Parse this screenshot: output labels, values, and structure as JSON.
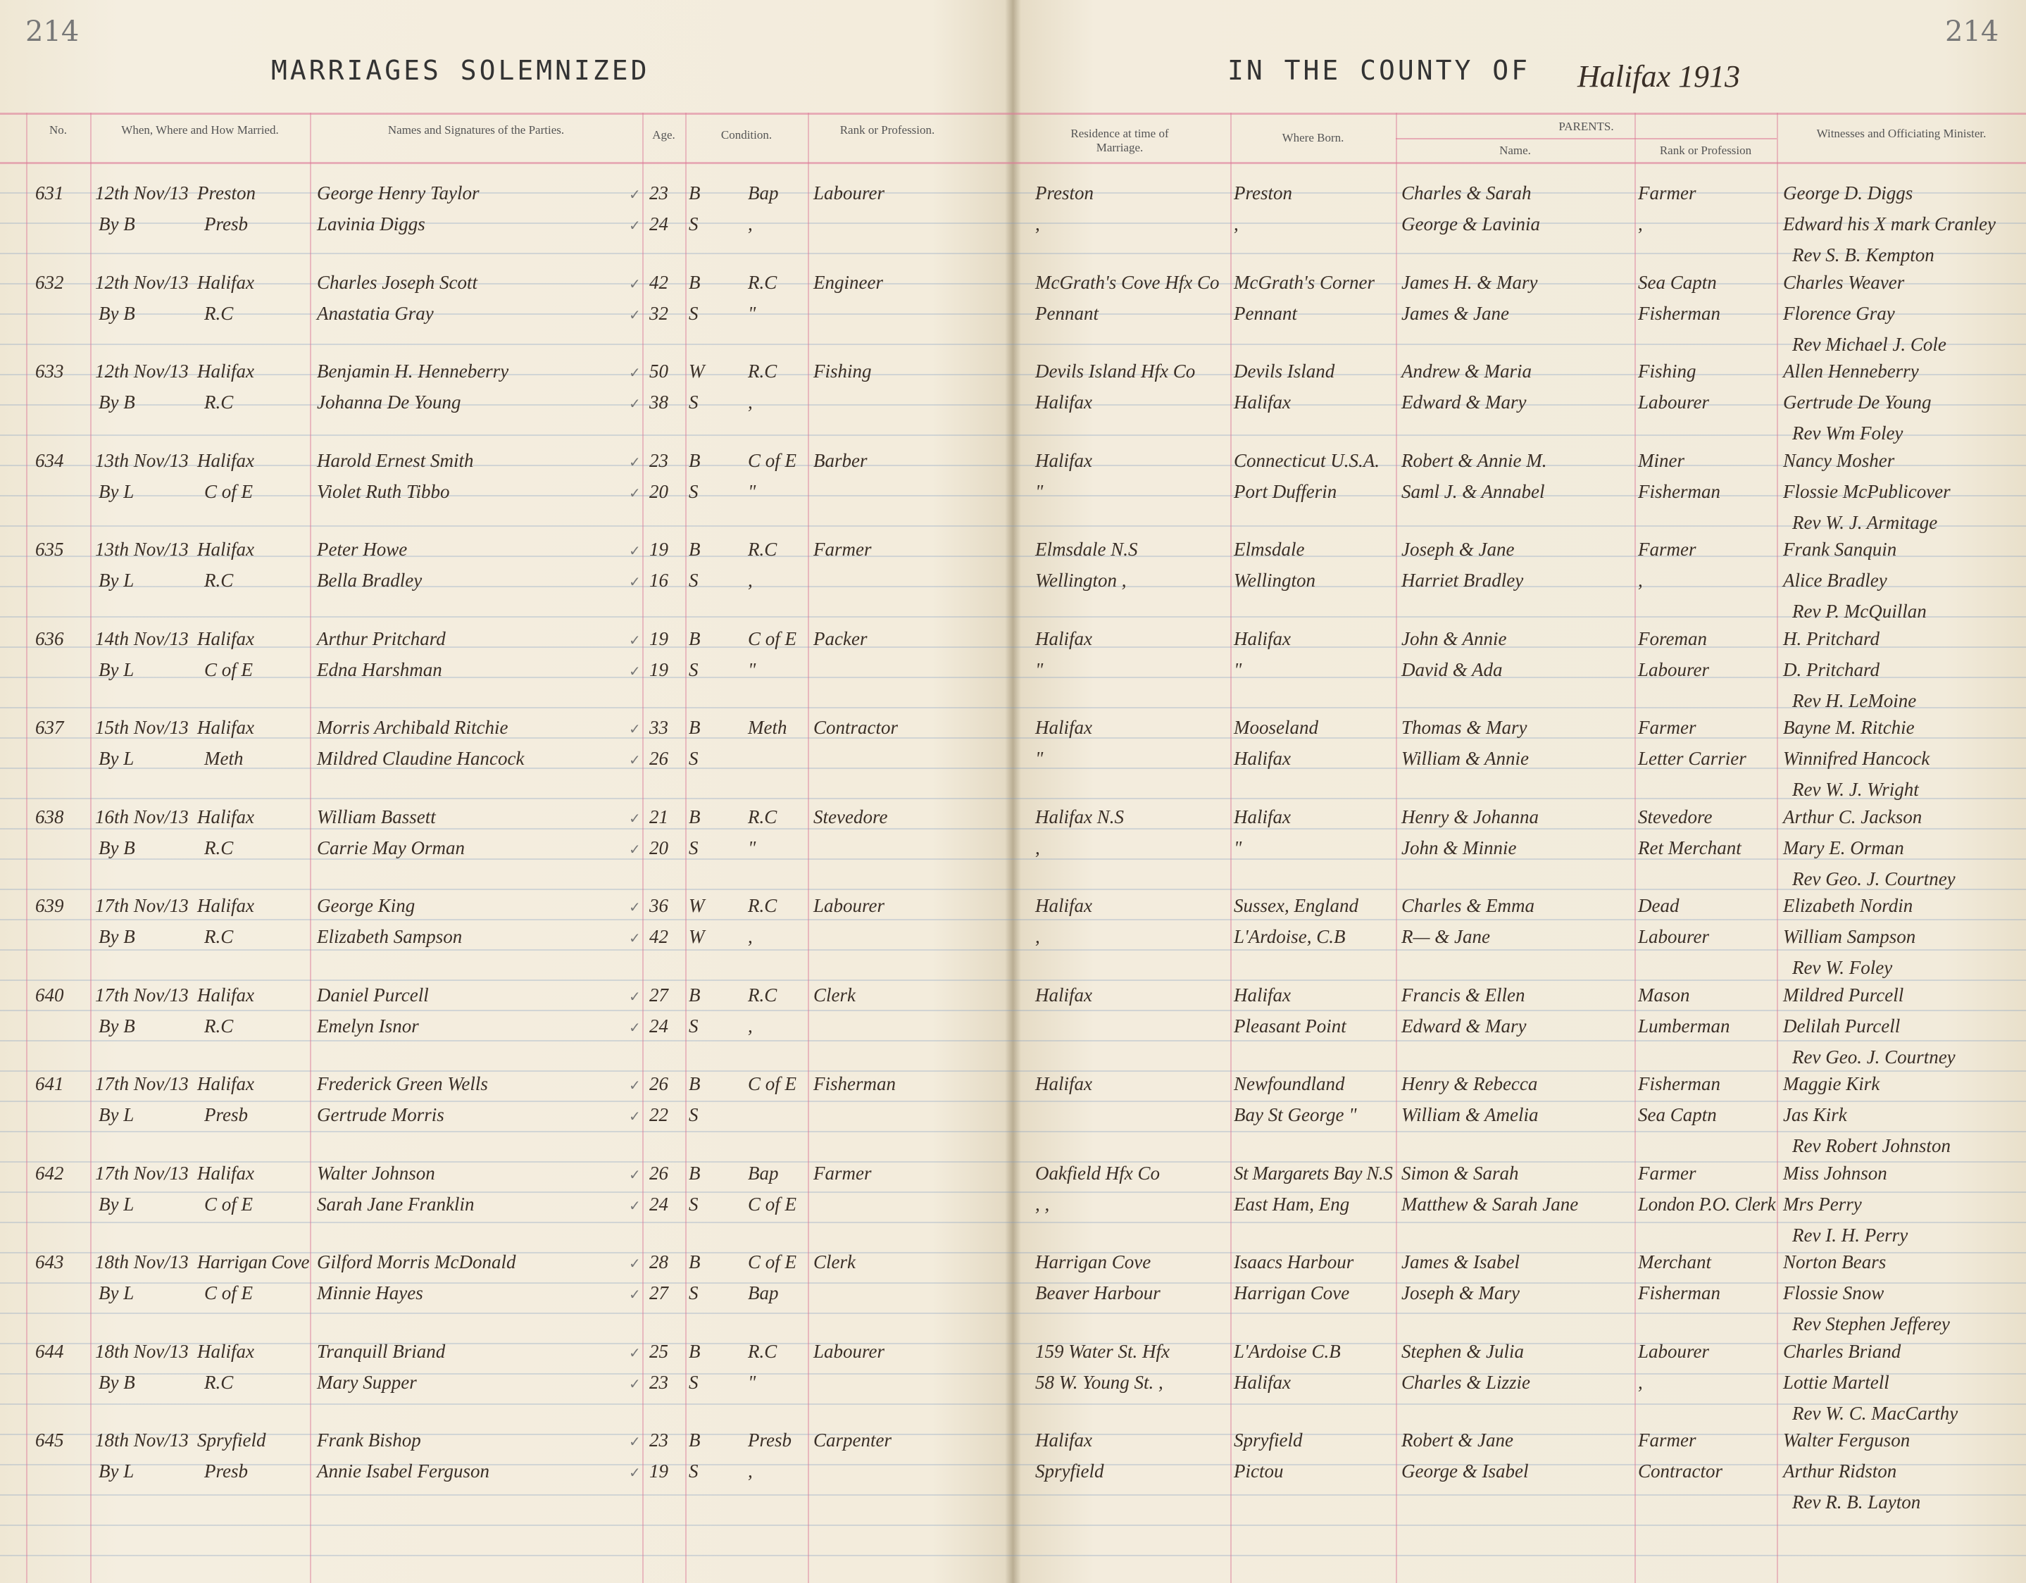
{
  "page_number_left": "214",
  "page_number_right": "214",
  "title_left": "MARRIAGES SOLEMNIZED",
  "title_right": "IN THE COUNTY OF",
  "county_handwritten": "Halifax 1913",
  "headers": {
    "no": "No.",
    "when": "When, Where and How Married.",
    "names": "Names and Signatures of the Parties.",
    "age": "Age.",
    "condition": "Condition.",
    "rank": "Rank or Profession.",
    "residence": "Residence at time of Marriage.",
    "born": "Where Born.",
    "parents": "PARENTS.",
    "parent_name": "Name.",
    "parent_rank": "Rank or Profession",
    "witnesses": "Witnesses and Officiating Minister."
  },
  "entries": [
    {
      "no": "631",
      "date": "12th Nov/13",
      "place": "Preston",
      "by": "By B",
      "denom": "Presb",
      "groom": "George Henry Taylor",
      "bride": "Lavinia Diggs",
      "age1": "23",
      "age2": "24",
      "cond1": "B",
      "cond2": "S",
      "rel1": "Bap",
      "rel2": ",",
      "rank1": "Labourer",
      "rank2": "",
      "res1": "Preston",
      "res2": ",",
      "born1": "Preston",
      "born2": ",",
      "par1": "Charles & Sarah",
      "par2": "George & Lavinia",
      "prank1": "Farmer",
      "prank2": ",",
      "wit1": "George D. Diggs",
      "wit2": "Edward his X mark Cranley",
      "minister": "Rev S. B. Kempton"
    },
    {
      "no": "632",
      "date": "12th Nov/13",
      "place": "Halifax",
      "by": "By B",
      "denom": "R.C",
      "groom": "Charles Joseph Scott",
      "bride": "Anastatia Gray",
      "age1": "42",
      "age2": "32",
      "cond1": "B",
      "cond2": "S",
      "rel1": "R.C",
      "rel2": "\"",
      "rank1": "Engineer",
      "rank2": "",
      "res1": "McGrath's Cove Hfx Co",
      "res2": "Pennant",
      "born1": "McGrath's Corner",
      "born2": "Pennant",
      "par1": "James H. & Mary",
      "par2": "James & Jane",
      "prank1": "Sea Captn",
      "prank2": "Fisherman",
      "wit1": "Charles Weaver",
      "wit2": "Florence Gray",
      "minister": "Rev Michael J. Cole"
    },
    {
      "no": "633",
      "date": "12th Nov/13",
      "place": "Halifax",
      "by": "By B",
      "denom": "R.C",
      "groom": "Benjamin H. Henneberry",
      "bride": "Johanna De Young",
      "age1": "50",
      "age2": "38",
      "cond1": "W",
      "cond2": "S",
      "rel1": "R.C",
      "rel2": ",",
      "rank1": "Fishing",
      "rank2": "",
      "res1": "Devils Island Hfx Co",
      "res2": "Halifax",
      "born1": "Devils Island",
      "born2": "Halifax",
      "par1": "Andrew & Maria",
      "par2": "Edward & Mary",
      "prank1": "Fishing",
      "prank2": "Labourer",
      "wit1": "Allen Henneberry",
      "wit2": "Gertrude De Young",
      "minister": "Rev Wm Foley"
    },
    {
      "no": "634",
      "date": "13th Nov/13",
      "place": "Halifax",
      "by": "By L",
      "denom": "C of E",
      "groom": "Harold Ernest Smith",
      "bride": "Violet Ruth Tibbo",
      "age1": "23",
      "age2": "20",
      "cond1": "B",
      "cond2": "S",
      "rel1": "C of E",
      "rel2": "\"",
      "rank1": "Barber",
      "rank2": "",
      "res1": "Halifax",
      "res2": "\"",
      "born1": "Connecticut U.S.A.",
      "born2": "Port Dufferin",
      "par1": "Robert & Annie M.",
      "par2": "Saml J. & Annabel",
      "prank1": "Miner",
      "prank2": "Fisherman",
      "wit1": "Nancy Mosher",
      "wit2": "Flossie McPublicover",
      "minister": "Rev W. J. Armitage"
    },
    {
      "no": "635",
      "date": "13th Nov/13",
      "place": "Halifax",
      "by": "By L",
      "denom": "R.C",
      "groom": "Peter Howe",
      "bride": "Bella Bradley",
      "age1": "19",
      "age2": "16",
      "cond1": "B",
      "cond2": "S",
      "rel1": "R.C",
      "rel2": ",",
      "rank1": "Farmer",
      "rank2": "",
      "res1": "Elmsdale N.S",
      "res2": "Wellington ,",
      "born1": "Elmsdale",
      "born2": "Wellington",
      "par1": "Joseph & Jane",
      "par2": "Harriet Bradley",
      "prank1": "Farmer",
      "prank2": ",",
      "wit1": "Frank Sanquin",
      "wit2": "Alice Bradley",
      "minister": "Rev P. McQuillan"
    },
    {
      "no": "636",
      "date": "14th Nov/13",
      "place": "Halifax",
      "by": "By L",
      "denom": "C of E",
      "groom": "Arthur Pritchard",
      "bride": "Edna Harshman",
      "age1": "19",
      "age2": "19",
      "cond1": "B",
      "cond2": "S",
      "rel1": "C of E",
      "rel2": "\"",
      "rank1": "Packer",
      "rank2": "",
      "res1": "Halifax",
      "res2": "\"",
      "born1": "Halifax",
      "born2": "\"",
      "par1": "John & Annie",
      "par2": "David & Ada",
      "prank1": "Foreman",
      "prank2": "Labourer",
      "wit1": "H. Pritchard",
      "wit2": "D. Pritchard",
      "minister": "Rev H. LeMoine"
    },
    {
      "no": "637",
      "date": "15th Nov/13",
      "place": "Halifax",
      "by": "By L",
      "denom": "Meth",
      "groom": "Morris Archibald Ritchie",
      "bride": "Mildred Claudine Hancock",
      "age1": "33",
      "age2": "26",
      "cond1": "B",
      "cond2": "S",
      "rel1": "Meth",
      "rel2": "",
      "rank1": "Contractor",
      "rank2": "",
      "res1": "Halifax",
      "res2": "\"",
      "born1": "Mooseland",
      "born2": "Halifax",
      "par1": "Thomas & Mary",
      "par2": "William & Annie",
      "prank1": "Farmer",
      "prank2": "Letter Carrier",
      "wit1": "Bayne M. Ritchie",
      "wit2": "Winnifred Hancock",
      "minister": "Rev W. J. Wright"
    },
    {
      "no": "638",
      "date": "16th Nov/13",
      "place": "Halifax",
      "by": "By B",
      "denom": "R.C",
      "groom": "William Bassett",
      "bride": "Carrie May Orman",
      "age1": "21",
      "age2": "20",
      "cond1": "B",
      "cond2": "S",
      "rel1": "R.C",
      "rel2": "\"",
      "rank1": "Stevedore",
      "rank2": "",
      "res1": "Halifax N.S",
      "res2": ",",
      "born1": "Halifax",
      "born2": "\"",
      "par1": "Henry & Johanna",
      "par2": "John & Minnie",
      "prank1": "Stevedore",
      "prank2": "Ret Merchant",
      "wit1": "Arthur C. Jackson",
      "wit2": "Mary E. Orman",
      "minister": "Rev Geo. J. Courtney"
    },
    {
      "no": "639",
      "date": "17th Nov/13",
      "place": "Halifax",
      "by": "By B",
      "denom": "R.C",
      "groom": "George King",
      "bride": "Elizabeth Sampson",
      "age1": "36",
      "age2": "42",
      "cond1": "W",
      "cond2": "W",
      "rel1": "R.C",
      "rel2": ",",
      "rank1": "Labourer",
      "rank2": "",
      "res1": "Halifax",
      "res2": ",",
      "born1": "Sussex, England",
      "born2": "L'Ardoise, C.B",
      "par1": "Charles & Emma",
      "par2": "R— & Jane",
      "prank1": "Dead",
      "prank2": "Labourer",
      "wit1": "Elizabeth Nordin",
      "wit2": "William Sampson",
      "minister": "Rev W. Foley"
    },
    {
      "no": "640",
      "date": "17th Nov/13",
      "place": "Halifax",
      "by": "By B",
      "denom": "R.C",
      "groom": "Daniel Purcell",
      "bride": "Emelyn Isnor",
      "age1": "27",
      "age2": "24",
      "cond1": "B",
      "cond2": "S",
      "rel1": "R.C",
      "rel2": ",",
      "rank1": "Clerk",
      "rank2": "",
      "res1": "Halifax",
      "res2": "",
      "born1": "Halifax",
      "born2": "Pleasant Point",
      "par1": "Francis & Ellen",
      "par2": "Edward & Mary",
      "prank1": "Mason",
      "prank2": "Lumberman",
      "wit1": "Mildred Purcell",
      "wit2": "Delilah Purcell",
      "minister": "Rev Geo. J. Courtney"
    },
    {
      "no": "641",
      "date": "17th Nov/13",
      "place": "Halifax",
      "by": "By L",
      "denom": "Presb",
      "groom": "Frederick Green Wells",
      "bride": "Gertrude Morris",
      "age1": "26",
      "age2": "22",
      "cond1": "B",
      "cond2": "S",
      "rel1": "C of E",
      "rel2": "",
      "rank1": "Fisherman",
      "rank2": "",
      "res1": "Halifax",
      "res2": "",
      "born1": "Newfoundland",
      "born2": "Bay St George \"",
      "par1": "Henry & Rebecca",
      "par2": "William & Amelia",
      "prank1": "Fisherman",
      "prank2": "Sea Captn",
      "wit1": "Maggie Kirk",
      "wit2": "Jas Kirk",
      "minister": "Rev Robert Johnston"
    },
    {
      "no": "642",
      "date": "17th Nov/13",
      "place": "Halifax",
      "by": "By L",
      "denom": "C of E",
      "groom": "Walter Johnson",
      "bride": "Sarah Jane Franklin",
      "age1": "26",
      "age2": "24",
      "cond1": "B",
      "cond2": "S",
      "rel1": "Bap",
      "rel2": "C of E",
      "rank1": "Farmer",
      "rank2": "",
      "res1": "Oakfield Hfx Co",
      "res2": ", ,",
      "born1": "St Margarets Bay N.S",
      "born2": "East Ham, Eng",
      "par1": "Simon & Sarah",
      "par2": "Matthew & Sarah Jane",
      "prank1": "Farmer",
      "prank2": "London P.O. Clerk",
      "wit1": "Miss Johnson",
      "wit2": "Mrs Perry",
      "minister": "Rev I. H. Perry"
    },
    {
      "no": "643",
      "date": "18th Nov/13",
      "place": "Harrigan Cove",
      "by": "By L",
      "denom": "C of E",
      "groom": "Gilford Morris McDonald",
      "bride": "Minnie Hayes",
      "age1": "28",
      "age2": "27",
      "cond1": "B",
      "cond2": "S",
      "rel1": "C of E",
      "rel2": "Bap",
      "rank1": "Clerk",
      "rank2": "",
      "res1": "Harrigan Cove",
      "res2": "Beaver Harbour",
      "born1": "Isaacs Harbour",
      "born2": "Harrigan Cove",
      "par1": "James & Isabel",
      "par2": "Joseph & Mary",
      "prank1": "Merchant",
      "prank2": "Fisherman",
      "wit1": "Norton Bears",
      "wit2": "Flossie Snow",
      "minister": "Rev Stephen Jefferey"
    },
    {
      "no": "644",
      "date": "18th Nov/13",
      "place": "Halifax",
      "by": "By B",
      "denom": "R.C",
      "groom": "Tranquill Briand",
      "bride": "Mary Supper",
      "age1": "25",
      "age2": "23",
      "cond1": "B",
      "cond2": "S",
      "rel1": "R.C",
      "rel2": "\"",
      "rank1": "Labourer",
      "rank2": "",
      "res1": "159 Water St. Hfx",
      "res2": "58 W. Young St. ,",
      "born1": "L'Ardoise C.B",
      "born2": "Halifax",
      "par1": "Stephen & Julia",
      "par2": "Charles & Lizzie",
      "prank1": "Labourer",
      "prank2": ",",
      "wit1": "Charles Briand",
      "wit2": "Lottie Martell",
      "minister": "Rev W. C. MacCarthy"
    },
    {
      "no": "645",
      "date": "18th Nov/13",
      "place": "Spryfield",
      "by": "By L",
      "denom": "Presb",
      "groom": "Frank Bishop",
      "bride": "Annie Isabel Ferguson",
      "age1": "23",
      "age2": "19",
      "cond1": "B",
      "cond2": "S",
      "rel1": "Presb",
      "rel2": ",",
      "rank1": "Carpenter",
      "rank2": "",
      "res1": "Halifax",
      "res2": "Spryfield",
      "born1": "Spryfield",
      "born2": "Pictou",
      "par1": "Robert & Jane",
      "par2": "George & Isabel",
      "prank1": "Farmer",
      "prank2": "Contractor",
      "wit1": "Walter Ferguson",
      "wit2": "Arthur Ridston",
      "minister": "Rev R. B. Layton"
    }
  ]
}
